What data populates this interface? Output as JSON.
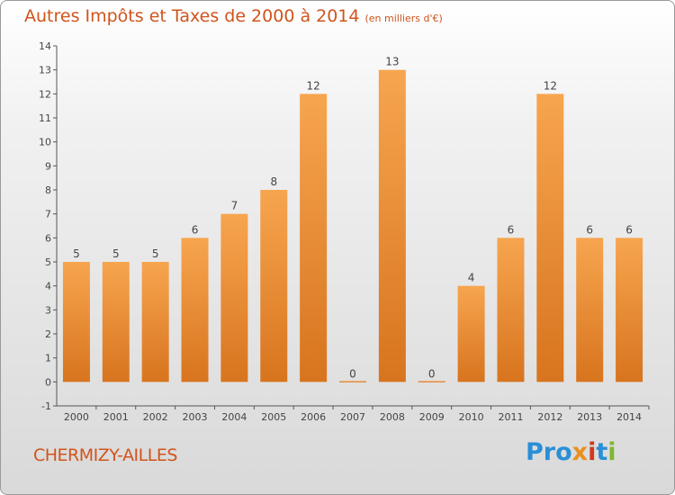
{
  "header": {
    "title": "Autres Impôts et Taxes de 2000 à 2014",
    "unit": "(en milliers d'€)"
  },
  "footer": {
    "commune": "CHERMIZY-AILLES",
    "logo": [
      "Pro",
      "x",
      "i",
      "t",
      "i"
    ]
  },
  "colors": {
    "bar_light": "#f7a54f",
    "bar_dark": "#d8741e",
    "title": "#d0541c"
  },
  "chart_data": {
    "type": "bar",
    "title": "Autres Impôts et Taxes de 2000 à 2014",
    "subtitle": "(en milliers d'€)",
    "categories": [
      "2000",
      "2001",
      "2002",
      "2003",
      "2004",
      "2005",
      "2006",
      "2007",
      "2008",
      "2009",
      "2010",
      "2011",
      "2012",
      "2013",
      "2014"
    ],
    "values": [
      5,
      5,
      5,
      6,
      7,
      8,
      12,
      0,
      13,
      0,
      4,
      6,
      12,
      6,
      6
    ],
    "ylim": [
      -1,
      14
    ],
    "yticks": [
      -1,
      0,
      1,
      2,
      3,
      4,
      5,
      6,
      7,
      8,
      9,
      10,
      11,
      12,
      13,
      14
    ],
    "grid": false,
    "xlabel": "",
    "ylabel": ""
  }
}
